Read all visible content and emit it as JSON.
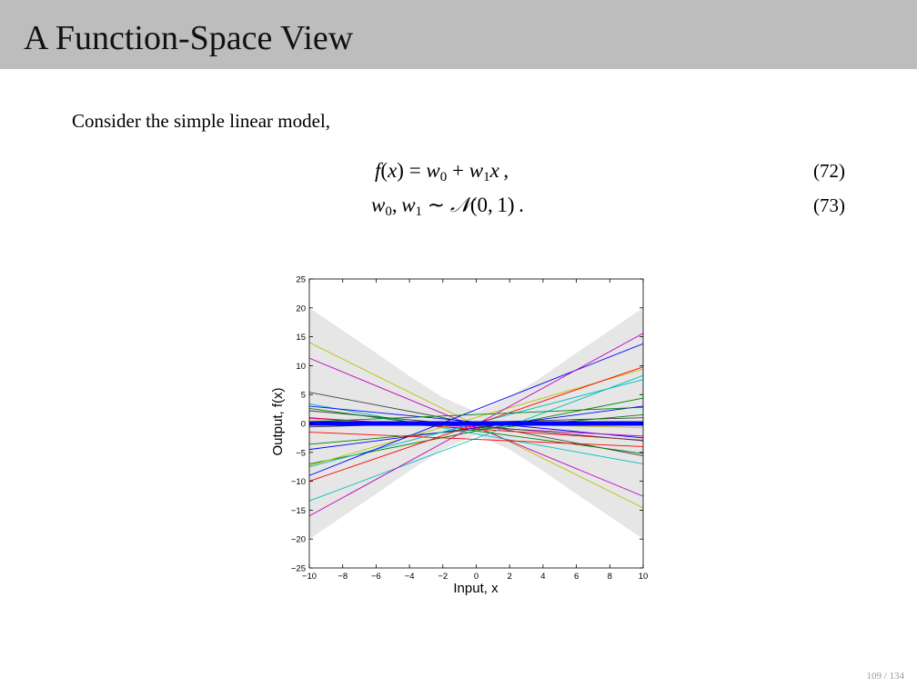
{
  "slide": {
    "title": "A Function-Space View",
    "intro": "Consider the simple linear model,",
    "page": "109 / 134"
  },
  "equations": [
    {
      "number": "(72)"
    },
    {
      "number": "(73)"
    }
  ],
  "chart_data": {
    "type": "line",
    "xlabel": "Input, x",
    "ylabel": "Output, f(x)",
    "xlim": [
      -10,
      10
    ],
    "ylim": [
      -25,
      25
    ],
    "xticks": [
      -10,
      -8,
      -6,
      -4,
      -2,
      0,
      2,
      4,
      6,
      8,
      10
    ],
    "yticks": [
      -25,
      -20,
      -15,
      -10,
      -5,
      0,
      5,
      10,
      15,
      20,
      25
    ],
    "band": {
      "color": "#e6e6e6",
      "x": [
        -10,
        -8,
        -6,
        -4,
        -2,
        0,
        2,
        4,
        6,
        8,
        10
      ],
      "upper": [
        20,
        16.1,
        12.2,
        8.2,
        4.5,
        2,
        4.5,
        8.2,
        12.2,
        16.1,
        20
      ],
      "lower": [
        -20,
        -16.1,
        -12.2,
        -8.2,
        -4.5,
        -2,
        -4.5,
        -8.2,
        -12.2,
        -16.1,
        -20
      ]
    },
    "mean": {
      "x": [
        -10,
        10
      ],
      "y": [
        0,
        0
      ],
      "color": "#0000ff"
    },
    "lines": [
      {
        "color": "#bfbf00",
        "x": [
          -10,
          10
        ],
        "y": [
          14,
          -14.6
        ]
      },
      {
        "color": "#bf00bf",
        "x": [
          -10,
          10
        ],
        "y": [
          11.3,
          -12.6
        ]
      },
      {
        "color": "#404040",
        "x": [
          -10,
          10
        ],
        "y": [
          5.4,
          -5.6
        ]
      },
      {
        "color": "#00bfbf",
        "x": [
          -10,
          10
        ],
        "y": [
          3.4,
          -7.0
        ]
      },
      {
        "color": "#0000ff",
        "x": [
          -10,
          10
        ],
        "y": [
          3.0,
          -2.5
        ]
      },
      {
        "color": "#008000",
        "x": [
          -10,
          10
        ],
        "y": [
          2.6,
          -5.2
        ]
      },
      {
        "color": "#ff0000",
        "x": [
          -10,
          10
        ],
        "y": [
          1.0,
          -2.9
        ]
      },
      {
        "color": "#bf00bf",
        "x": [
          -10,
          10
        ],
        "y": [
          0.9,
          -2.2
        ]
      },
      {
        "color": "#bfbf00",
        "x": [
          -10,
          10
        ],
        "y": [
          0.5,
          -0.7
        ]
      },
      {
        "color": "#404040",
        "x": [
          -10,
          10
        ],
        "y": [
          -0.6,
          1.0
        ]
      },
      {
        "color": "#008000",
        "x": [
          -10,
          10
        ],
        "y": [
          -3.6,
          1.5
        ]
      },
      {
        "color": "#0000ff",
        "x": [
          -10,
          10
        ],
        "y": [
          -4.5,
          3.0
        ]
      },
      {
        "color": "#008000",
        "x": [
          -10,
          10
        ],
        "y": [
          -7.0,
          4.4
        ]
      },
      {
        "color": "#bfbf00",
        "x": [
          -10,
          10
        ],
        "y": [
          -7.3,
          9.4
        ]
      },
      {
        "color": "#00bfbf",
        "x": [
          -10,
          10
        ],
        "y": [
          -7.5,
          7.6
        ]
      },
      {
        "color": "#0000ff",
        "x": [
          -10,
          10
        ],
        "y": [
          -9.0,
          13.8
        ]
      },
      {
        "color": "#ff0000",
        "x": [
          -10,
          10
        ],
        "y": [
          -10.0,
          9.8
        ]
      },
      {
        "color": "#00bfbf",
        "x": [
          -10,
          10
        ],
        "y": [
          -13.4,
          8.3
        ]
      },
      {
        "color": "#bf00bf",
        "x": [
          -10,
          10
        ],
        "y": [
          -16.0,
          15.6
        ]
      },
      {
        "color": "#404040",
        "x": [
          -10,
          10
        ],
        "y": [
          2.2,
          -3.0
        ]
      },
      {
        "color": "#ff0000",
        "x": [
          -10,
          10
        ],
        "y": [
          -1.5,
          -4.0
        ]
      },
      {
        "color": "#008000",
        "x": [
          -10,
          10
        ],
        "y": [
          0.3,
          2.8
        ]
      }
    ]
  }
}
